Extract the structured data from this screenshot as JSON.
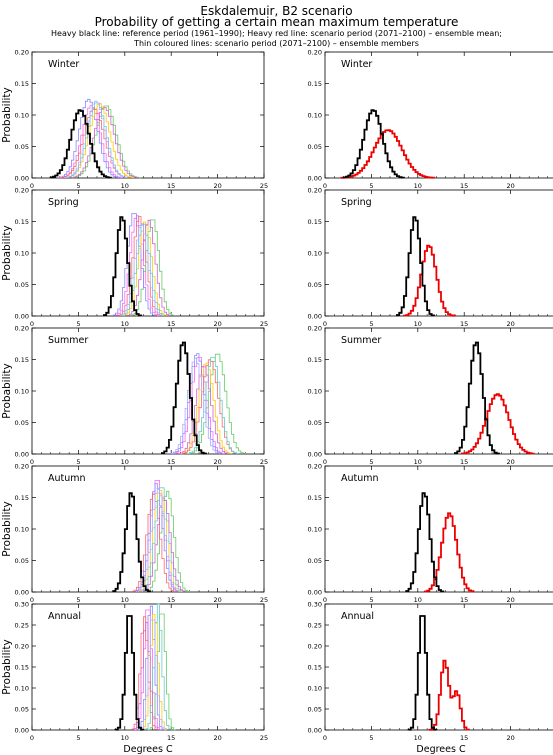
{
  "header": {
    "title_line1": "Eskdalemuir, B2 scenario",
    "title_line2": "Probability of getting a certain mean maximum temperature",
    "subtitle_line1": "Heavy black line: reference period (1961–1990); Heavy red line: scenario period (2071–2100) – ensemble mean;",
    "subtitle_line2": "Thin coloured lines: scenario period (2071–2100) – ensemble members"
  },
  "colors": {
    "reference": "#000000",
    "ensemble_mean": "#ee0000",
    "members": [
      "#ff66ff",
      "#66cc66",
      "#8888ff",
      "#ffcc00",
      "#ff6666",
      "#66cccc",
      "#cc66cc",
      "#aaaaff"
    ]
  },
  "chart_data": [
    {
      "type": "step",
      "season": "Winter",
      "column": "members",
      "x": {
        "label": "",
        "range": [
          0,
          25
        ],
        "ticks": [
          0,
          5,
          10,
          15,
          20,
          25
        ]
      },
      "y": {
        "label": "Probability",
        "range": [
          0,
          0.2
        ],
        "ticks": [
          0.0,
          0.05,
          0.1,
          0.15,
          0.2
        ]
      },
      "reference": {
        "mean": 5.2,
        "sd": 1.0,
        "peak": 0.108
      },
      "members": [
        {
          "mean": 6.4,
          "sd": 1.0,
          "peak": 0.115
        },
        {
          "mean": 8.0,
          "sd": 1.1,
          "peak": 0.115
        },
        {
          "mean": 6.1,
          "sd": 1.0,
          "peak": 0.125
        },
        {
          "mean": 7.3,
          "sd": 1.1,
          "peak": 0.118
        },
        {
          "mean": 6.7,
          "sd": 1.1,
          "peak": 0.11
        },
        {
          "mean": 7.0,
          "sd": 1.0,
          "peak": 0.12
        },
        {
          "mean": 7.8,
          "sd": 1.1,
          "peak": 0.112
        },
        {
          "mean": 6.9,
          "sd": 1.0,
          "peak": 0.122
        }
      ]
    },
    {
      "type": "step",
      "season": "Winter",
      "column": "mean",
      "x": {
        "label": "",
        "range": [
          0,
          25
        ],
        "ticks": [
          0,
          5,
          10,
          15,
          20,
          25
        ]
      },
      "y": {
        "label": "",
        "range": [
          0,
          0.2
        ],
        "ticks": [
          0.0,
          0.05,
          0.1,
          0.15,
          0.2
        ]
      },
      "reference": {
        "mean": 5.2,
        "sd": 1.0,
        "peak": 0.108
      },
      "scenario_mean": {
        "mean": 6.8,
        "sd": 1.5,
        "peak": 0.076
      }
    },
    {
      "type": "step",
      "season": "Spring",
      "column": "members",
      "x": {
        "label": "",
        "range": [
          0,
          25
        ],
        "ticks": [
          0,
          5,
          10,
          15,
          20,
          25
        ]
      },
      "y": {
        "label": "Probability",
        "range": [
          0,
          0.2
        ],
        "ticks": [
          0.0,
          0.05,
          0.1,
          0.15,
          0.2
        ]
      },
      "reference": {
        "mean": 9.7,
        "sd": 0.6,
        "peak": 0.158
      },
      "members": [
        {
          "mean": 11.3,
          "sd": 0.7,
          "peak": 0.16
        },
        {
          "mean": 13.0,
          "sd": 0.7,
          "peak": 0.155
        },
        {
          "mean": 11.0,
          "sd": 0.7,
          "peak": 0.165
        },
        {
          "mean": 12.2,
          "sd": 0.7,
          "peak": 0.15
        },
        {
          "mean": 11.6,
          "sd": 0.7,
          "peak": 0.158
        },
        {
          "mean": 12.0,
          "sd": 0.7,
          "peak": 0.148
        },
        {
          "mean": 12.6,
          "sd": 0.7,
          "peak": 0.152
        },
        {
          "mean": 11.8,
          "sd": 0.7,
          "peak": 0.145
        }
      ]
    },
    {
      "type": "step",
      "season": "Spring",
      "column": "mean",
      "x": {
        "label": "",
        "range": [
          0,
          25
        ],
        "ticks": [
          0,
          5,
          10,
          15,
          20,
          25
        ]
      },
      "y": {
        "label": "",
        "range": [
          0,
          0.2
        ],
        "ticks": [
          0.0,
          0.05,
          0.1,
          0.15,
          0.2
        ]
      },
      "reference": {
        "mean": 9.7,
        "sd": 0.6,
        "peak": 0.158
      },
      "scenario_mean": {
        "mean": 11.2,
        "sd": 0.8,
        "peak": 0.112
      }
    },
    {
      "type": "step",
      "season": "Summer",
      "column": "members",
      "x": {
        "label": "",
        "range": [
          0,
          25
        ],
        "ticks": [
          0,
          5,
          10,
          15,
          20,
          25
        ]
      },
      "y": {
        "label": "Probability",
        "range": [
          0,
          0.2
        ],
        "ticks": [
          0.0,
          0.05,
          0.1,
          0.15,
          0.2
        ]
      },
      "reference": {
        "mean": 16.3,
        "sd": 0.7,
        "peak": 0.178
      },
      "members": [
        {
          "mean": 18.0,
          "sd": 0.8,
          "peak": 0.155
        },
        {
          "mean": 20.0,
          "sd": 0.9,
          "peak": 0.16
        },
        {
          "mean": 17.8,
          "sd": 0.8,
          "peak": 0.16
        },
        {
          "mean": 18.8,
          "sd": 0.8,
          "peak": 0.145
        },
        {
          "mean": 19.2,
          "sd": 0.9,
          "peak": 0.15
        },
        {
          "mean": 19.5,
          "sd": 0.8,
          "peak": 0.155
        },
        {
          "mean": 18.5,
          "sd": 0.8,
          "peak": 0.14
        },
        {
          "mean": 17.6,
          "sd": 0.8,
          "peak": 0.152
        }
      ]
    },
    {
      "type": "step",
      "season": "Summer",
      "column": "mean",
      "x": {
        "label": "",
        "range": [
          0,
          25
        ],
        "ticks": [
          0,
          5,
          10,
          15,
          20,
          25
        ]
      },
      "y": {
        "label": "",
        "range": [
          0,
          0.2
        ],
        "ticks": [
          0.0,
          0.05,
          0.1,
          0.15,
          0.2
        ]
      },
      "reference": {
        "mean": 16.3,
        "sd": 0.7,
        "peak": 0.178
      },
      "scenario_mean": {
        "mean": 18.6,
        "sd": 1.2,
        "peak": 0.095
      }
    },
    {
      "type": "step",
      "season": "Autumn",
      "column": "members",
      "x": {
        "label": "",
        "range": [
          0,
          25
        ],
        "ticks": [
          0,
          5,
          10,
          15,
          20,
          25
        ]
      },
      "y": {
        "label": "Probability",
        "range": [
          0,
          0.2
        ],
        "ticks": [
          0.0,
          0.05,
          0.1,
          0.15,
          0.2
        ]
      },
      "reference": {
        "mean": 10.7,
        "sd": 0.6,
        "peak": 0.158
      },
      "members": [
        {
          "mean": 13.5,
          "sd": 0.7,
          "peak": 0.18
        },
        {
          "mean": 14.6,
          "sd": 0.7,
          "peak": 0.16
        },
        {
          "mean": 13.4,
          "sd": 0.7,
          "peak": 0.172
        },
        {
          "mean": 13.8,
          "sd": 0.7,
          "peak": 0.162
        },
        {
          "mean": 13.1,
          "sd": 0.7,
          "peak": 0.155
        },
        {
          "mean": 14.0,
          "sd": 0.7,
          "peak": 0.168
        },
        {
          "mean": 14.2,
          "sd": 0.7,
          "peak": 0.15
        },
        {
          "mean": 13.6,
          "sd": 0.7,
          "peak": 0.165
        }
      ]
    },
    {
      "type": "step",
      "season": "Autumn",
      "column": "mean",
      "x": {
        "label": "",
        "range": [
          0,
          25
        ],
        "ticks": [
          0,
          5,
          10,
          15,
          20,
          25
        ]
      },
      "y": {
        "label": "",
        "range": [
          0,
          0.2
        ],
        "ticks": [
          0.0,
          0.05,
          0.1,
          0.15,
          0.2
        ]
      },
      "reference": {
        "mean": 10.7,
        "sd": 0.6,
        "peak": 0.158
      },
      "scenario_mean": {
        "mean": 13.4,
        "sd": 0.8,
        "peak": 0.125
      }
    },
    {
      "type": "step",
      "season": "Annual",
      "column": "members",
      "x": {
        "label": "Degrees C",
        "range": [
          0,
          25
        ],
        "ticks": [
          0,
          5,
          10,
          15,
          20,
          25
        ]
      },
      "y": {
        "label": "Probability",
        "range": [
          0,
          0.3
        ],
        "ticks": [
          0.0,
          0.05,
          0.1,
          0.15,
          0.2,
          0.25,
          0.3
        ]
      },
      "reference": {
        "mean": 10.5,
        "sd": 0.4,
        "peak": 0.285
      },
      "members": [
        {
          "mean": 12.5,
          "sd": 0.4,
          "peak": 0.3
        },
        {
          "mean": 14.0,
          "sd": 0.4,
          "peak": 0.29
        },
        {
          "mean": 12.8,
          "sd": 0.4,
          "peak": 0.3
        },
        {
          "mean": 13.2,
          "sd": 0.4,
          "peak": 0.28
        },
        {
          "mean": 12.1,
          "sd": 0.4,
          "peak": 0.27
        },
        {
          "mean": 13.6,
          "sd": 0.4,
          "peak": 0.3
        },
        {
          "mean": 12.3,
          "sd": 0.4,
          "peak": 0.26
        },
        {
          "mean": 13.0,
          "sd": 0.4,
          "peak": 0.275
        }
      ]
    },
    {
      "type": "step",
      "season": "Annual",
      "column": "mean",
      "x": {
        "label": "Degrees C",
        "range": [
          0,
          25
        ],
        "ticks": [
          0,
          5,
          10,
          15,
          20,
          25
        ]
      },
      "y": {
        "label": "",
        "range": [
          0,
          0.3
        ],
        "ticks": [
          0.0,
          0.05,
          0.1,
          0.15,
          0.2,
          0.25,
          0.3
        ]
      },
      "reference": {
        "mean": 10.5,
        "sd": 0.4,
        "peak": 0.285
      },
      "scenario_mean": {
        "components": [
          {
            "mean": 12.9,
            "sd": 0.45,
            "peak": 0.165
          },
          {
            "mean": 14.2,
            "sd": 0.4,
            "peak": 0.09
          }
        ]
      }
    }
  ]
}
